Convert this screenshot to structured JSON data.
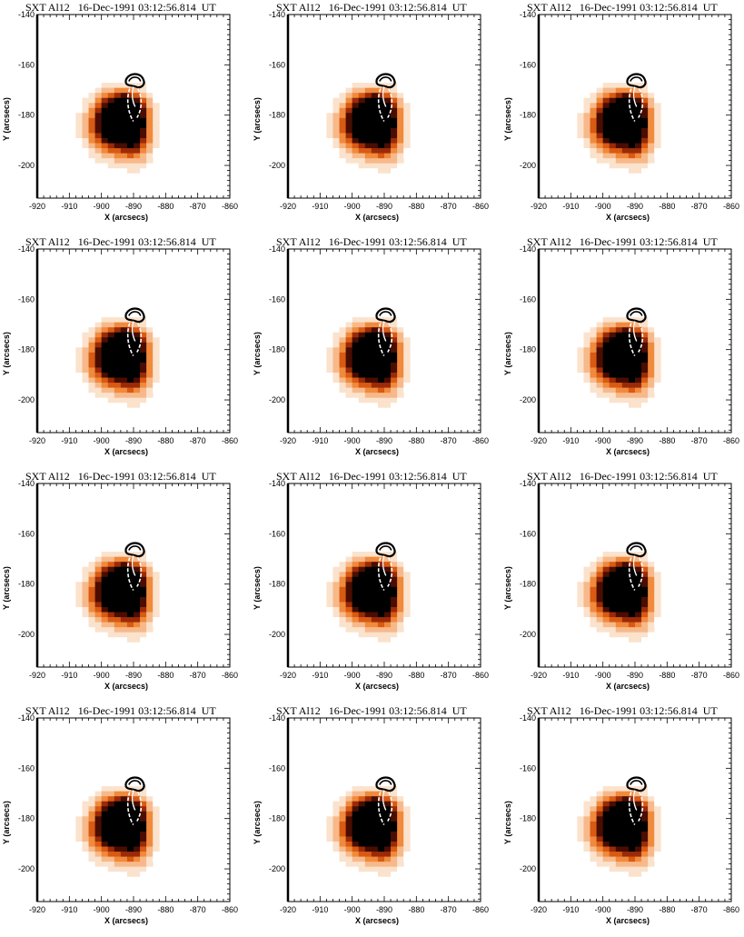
{
  "figure": {
    "panel_title": "SXT Al12   16-Dec-1991 03:12:56.814  UT",
    "xlabel": "X (arcsecs)",
    "ylabel": "Y (arcsecs)",
    "x_ticks": [
      "-920",
      "-910",
      "-900",
      "-890",
      "-880",
      "-870",
      "-860"
    ],
    "y_ticks": [
      "-140",
      "-160",
      "-180",
      "-200"
    ],
    "x_range": [
      -920,
      -860
    ],
    "y_range": [
      -213,
      -140
    ],
    "rows": 4,
    "cols": 3,
    "colormap": [
      "#ffffff",
      "#fbe2cc",
      "#f7b98a",
      "#f08a3c",
      "#d95a12",
      "#9a2a08",
      "#4a0d02",
      "#000000"
    ],
    "contour_colors": {
      "outer": "#000000",
      "inner": "#ffffff"
    }
  },
  "panels": [
    {
      "title": "SXT Al12   16-Dec-1991 03:12:56.814  UT"
    },
    {
      "title": "SXT Al12   16-Dec-1991 03:12:56.814  UT"
    },
    {
      "title": "SXT Al12   16-Dec-1991 03:12:56.814  UT"
    },
    {
      "title": "SXT Al12   16-Dec-1991 03:12:56.814  UT"
    },
    {
      "title": "SXT Al12   16-Dec-1991 03:12:56.814  UT"
    },
    {
      "title": "SXT Al12   16-Dec-1991 03:12:56.814  UT"
    },
    {
      "title": "SXT Al12   16-Dec-1991 03:12:56.814  UT"
    },
    {
      "title": "SXT Al12   16-Dec-1991 03:12:56.814  UT"
    },
    {
      "title": "SXT Al12   16-Dec-1991 03:12:56.814  UT"
    },
    {
      "title": "SXT Al12   16-Dec-1991 03:12:56.814  UT"
    },
    {
      "title": "SXT Al12   16-Dec-1991 03:12:56.814  UT"
    },
    {
      "title": "SXT Al12   16-Dec-1991 03:12:56.814  UT"
    }
  ]
}
